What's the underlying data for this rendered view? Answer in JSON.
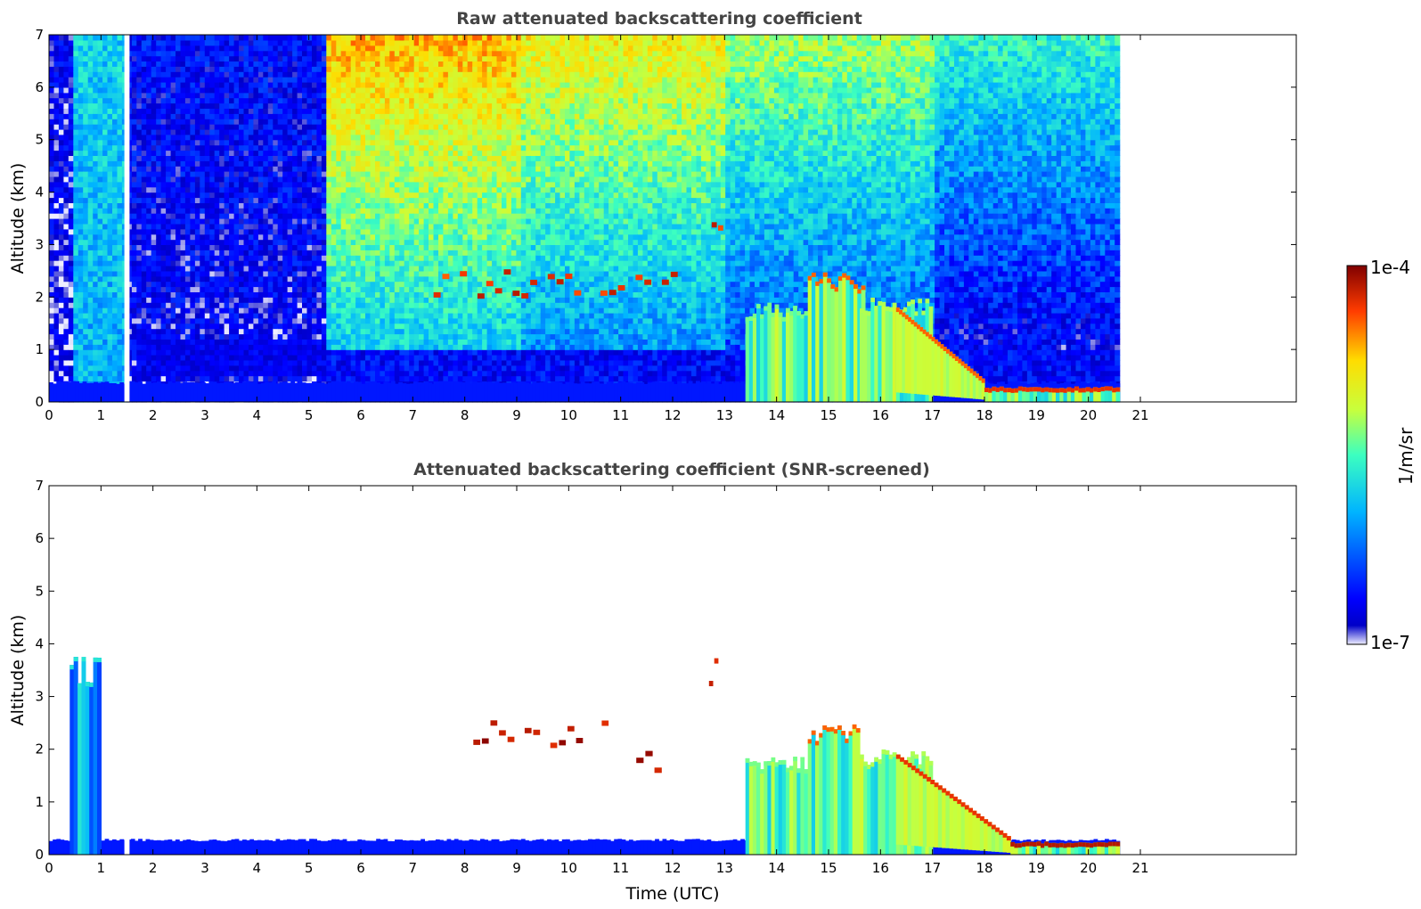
{
  "chart_data": [
    {
      "type": "heatmap",
      "title": "Raw attenuated backscattering coefficient",
      "xlabel": "",
      "ylabel": "Altitude (km)",
      "xlim": [
        0,
        24
      ],
      "ylim": [
        0,
        7
      ],
      "x_ticks": [
        0,
        1,
        2,
        3,
        4,
        5,
        6,
        7,
        8,
        9,
        10,
        11,
        12,
        13,
        14,
        15,
        16,
        17,
        18,
        19,
        20,
        21
      ],
      "y_ticks": [
        0,
        1,
        2,
        3,
        4,
        5,
        6,
        7
      ],
      "data_extent_x": [
        0,
        20.6
      ],
      "noise_upper_altitude_km": 7,
      "features": [
        {
          "kind": "ground_layer",
          "x": [
            0,
            20.6
          ],
          "y_top": 0.1,
          "level": 0.9
        },
        {
          "kind": "boundary_layer",
          "x": [
            0,
            20.6
          ],
          "y_top": 0.4,
          "level": 0.15
        },
        {
          "kind": "gap",
          "x": [
            1.45,
            1.55
          ]
        },
        {
          "kind": "cloud_layer",
          "x": [
            7.4,
            12.3
          ],
          "y": 2.3,
          "level": 0.95
        },
        {
          "kind": "cloud_layer",
          "x": [
            12.5,
            13.0
          ],
          "y": 3.6,
          "level": 0.95
        },
        {
          "kind": "elevated_layer",
          "x": [
            13.4,
            14.6
          ],
          "y_top": 1.9,
          "level": 0.55
        },
        {
          "kind": "elevated_layer",
          "x": [
            14.6,
            15.7
          ],
          "y_top": 2.5,
          "level": 0.85
        },
        {
          "kind": "elevated_layer",
          "x": [
            15.6,
            17.0
          ],
          "y_top": 2.0,
          "level": 0.6
        },
        {
          "kind": "descending_layer",
          "x": [
            16.3,
            18.0
          ],
          "y_from": 1.8,
          "y_to": 0.4,
          "level": 0.85
        },
        {
          "kind": "low_layer",
          "x": [
            18.0,
            20.6
          ],
          "y_top": 0.3,
          "level": 0.9
        }
      ]
    },
    {
      "type": "heatmap",
      "title": "Attenuated backscattering coefficient (SNR-screened)",
      "xlabel": "Time (UTC)",
      "ylabel": "Altitude (km)",
      "xlim": [
        0,
        24
      ],
      "ylim": [
        0,
        7
      ],
      "x_ticks": [
        0,
        1,
        2,
        3,
        4,
        5,
        6,
        7,
        8,
        9,
        10,
        11,
        12,
        13,
        14,
        15,
        16,
        17,
        18,
        19,
        20,
        21
      ],
      "y_ticks": [
        0,
        1,
        2,
        3,
        4,
        5,
        6,
        7
      ],
      "data_extent_x": [
        0,
        20.6
      ],
      "noise_upper_altitude_km": 0,
      "features": [
        {
          "kind": "ground_layer",
          "x": [
            0,
            20.6
          ],
          "y_top": 0.1,
          "level": 0.9
        },
        {
          "kind": "boundary_layer",
          "x": [
            0,
            20.6
          ],
          "y_top": 0.3,
          "level": 0.15
        },
        {
          "kind": "aerosol_column",
          "x": [
            0.4,
            1.0
          ],
          "y_top": 3.8,
          "level": 0.45
        },
        {
          "kind": "gap",
          "x": [
            1.45,
            1.55
          ]
        },
        {
          "kind": "cloud_layer",
          "x": [
            8.0,
            10.8
          ],
          "y": 2.3,
          "level": 1.0
        },
        {
          "kind": "cloud_layer",
          "x": [
            11.3,
            12.0
          ],
          "y": 1.8,
          "level": 1.0
        },
        {
          "kind": "cloud_layer",
          "x": [
            12.6,
            13.0
          ],
          "y": 3.5,
          "level": 0.95
        },
        {
          "kind": "elevated_layer",
          "x": [
            13.4,
            14.6
          ],
          "y_top": 1.9,
          "level": 0.55
        },
        {
          "kind": "elevated_layer",
          "x": [
            14.6,
            15.6
          ],
          "y_top": 2.5,
          "level": 0.85
        },
        {
          "kind": "elevated_layer",
          "x": [
            15.6,
            17.0
          ],
          "y_top": 2.0,
          "level": 0.6
        },
        {
          "kind": "descending_layer",
          "x": [
            16.3,
            18.5
          ],
          "y_from": 1.9,
          "y_to": 0.3,
          "level": 0.9
        },
        {
          "kind": "low_layer",
          "x": [
            18.5,
            20.6
          ],
          "y_top": 0.25,
          "level": 0.95
        }
      ]
    }
  ],
  "colorbar": {
    "label": "1/m/sr",
    "max_label": "1e-4",
    "min_label": "1e-7",
    "colormap": "jet",
    "scale": "log"
  }
}
